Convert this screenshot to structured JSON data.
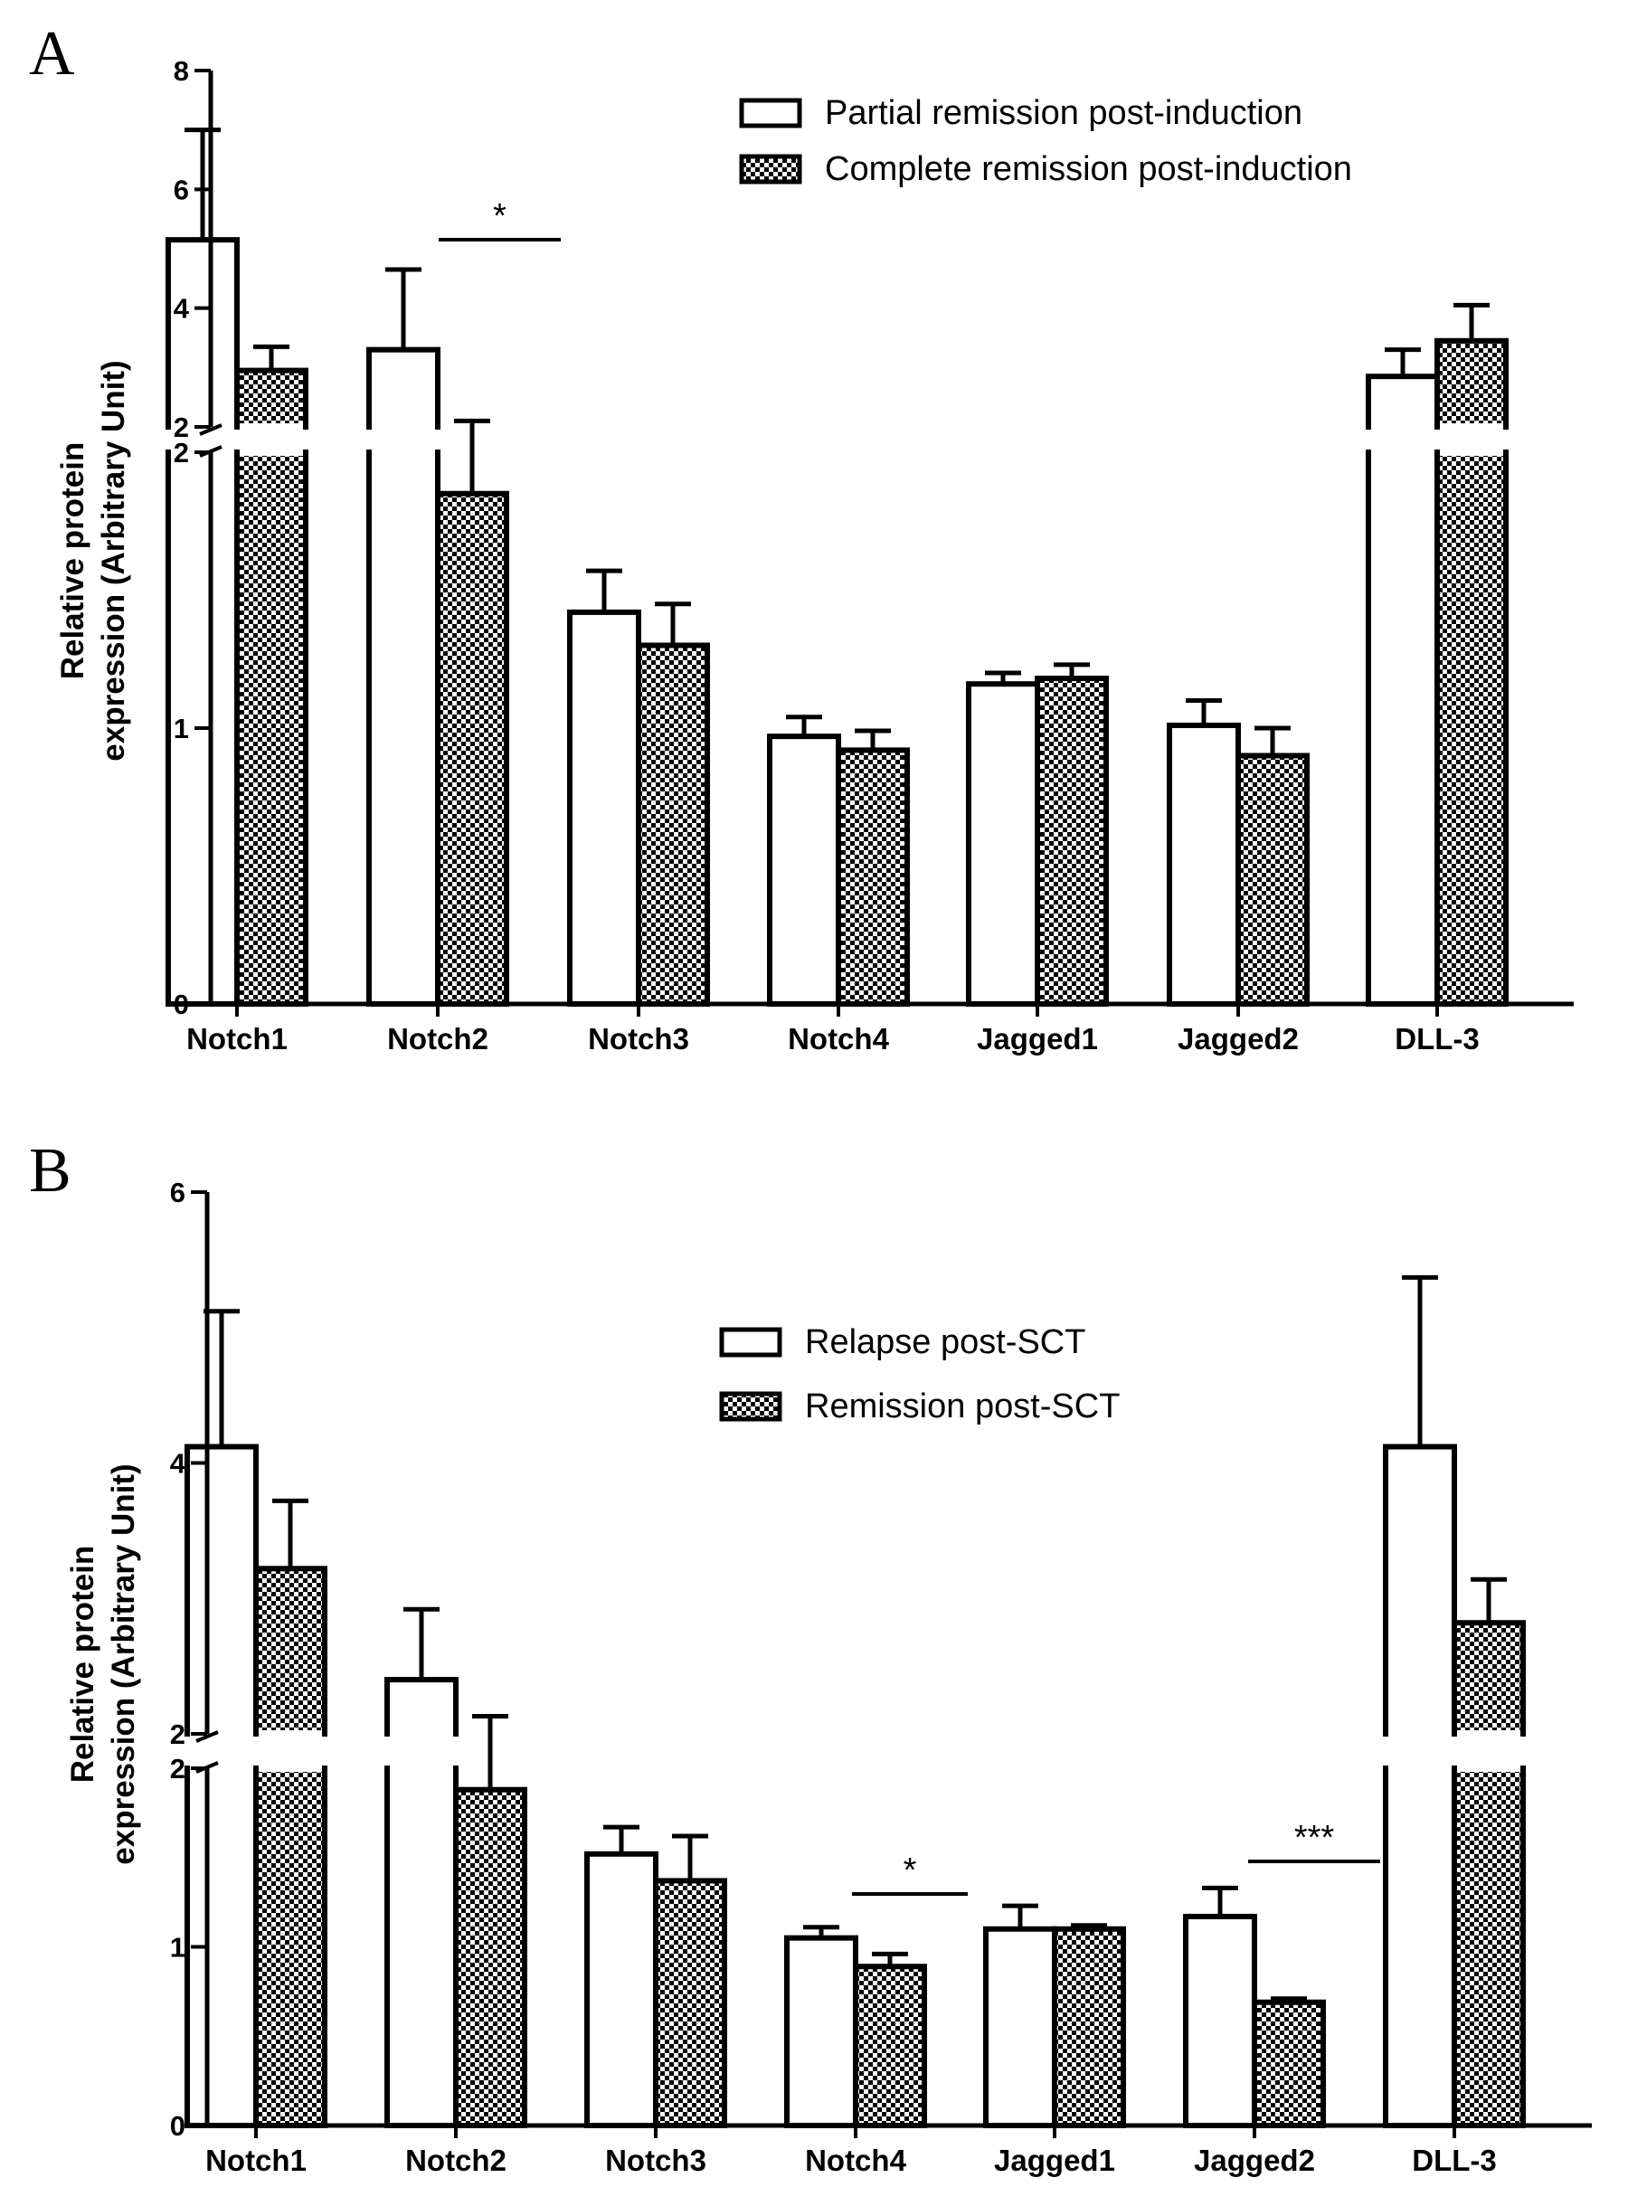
{
  "colors": {
    "ink": "#000000",
    "bar_open": "#ffffff",
    "checker": "#000000",
    "background": "#ffffff"
  },
  "chart_data": [
    {
      "panel": "A",
      "type": "bar",
      "xlabel": "",
      "ylabel_lines": [
        "Relative protein",
        "expression (Arbitrary Unit)"
      ],
      "y_axis_break": {
        "lower_range": [
          0,
          2
        ],
        "upper_range": [
          2,
          8
        ]
      },
      "yticks_lower": [
        {
          "value": 0,
          "label": "0"
        },
        {
          "value": 1,
          "label": "1"
        },
        {
          "value": 2,
          "label": "2"
        }
      ],
      "yticks_upper": [
        {
          "value": 2,
          "label": "2"
        },
        {
          "value": 4,
          "label": "4"
        },
        {
          "value": 6,
          "label": "6"
        },
        {
          "value": 8,
          "label": "8"
        }
      ],
      "categories": [
        "Notch1",
        "Notch2",
        "Notch3",
        "Notch4",
        "Jagged1",
        "Jagged2",
        "DLL-3"
      ],
      "series": [
        {
          "name": "Partial remission post-induction",
          "pattern": "open",
          "values": [
            5.15,
            3.3,
            1.42,
            0.97,
            1.16,
            1.01,
            2.85
          ],
          "errors": [
            1.85,
            1.35,
            0.15,
            0.07,
            0.04,
            0.09,
            0.45
          ]
        },
        {
          "name": "Complete remission post-induction",
          "pattern": "checker",
          "values": [
            2.95,
            1.85,
            1.3,
            0.92,
            1.18,
            0.9,
            3.45
          ],
          "errors": [
            0.4,
            0.25,
            0.15,
            0.07,
            0.05,
            0.1,
            0.6
          ]
        }
      ],
      "significance": [
        {
          "category": "Notch2",
          "label": "*"
        }
      ]
    },
    {
      "panel": "B",
      "type": "bar",
      "xlabel": "",
      "ylabel_lines": [
        "Relative protein",
        "expression (Arbitrary Unit)"
      ],
      "y_axis_break": {
        "lower_range": [
          0,
          2
        ],
        "upper_range": [
          2,
          6
        ]
      },
      "yticks_lower": [
        {
          "value": 0,
          "label": "0"
        },
        {
          "value": 1,
          "label": "1"
        },
        {
          "value": 2,
          "label": "2"
        }
      ],
      "yticks_upper": [
        {
          "value": 2,
          "label": "2"
        },
        {
          "value": 4,
          "label": "4"
        },
        {
          "value": 6,
          "label": "6"
        }
      ],
      "categories": [
        "Notch1",
        "Notch2",
        "Notch3",
        "Notch4",
        "Jagged1",
        "Jagged2",
        "DLL-3"
      ],
      "series": [
        {
          "name": "Relapse post-SCT",
          "pattern": "open",
          "values": [
            4.12,
            2.4,
            1.52,
            1.05,
            1.1,
            1.17,
            4.12
          ],
          "errors": [
            1.0,
            0.52,
            0.15,
            0.06,
            0.13,
            0.16,
            1.25
          ]
        },
        {
          "name": "Remission post-SCT",
          "pattern": "checker",
          "values": [
            3.22,
            1.88,
            1.37,
            0.89,
            1.1,
            0.69,
            2.82
          ],
          "errors": [
            0.5,
            0.25,
            0.25,
            0.07,
            0.02,
            0.02,
            0.32
          ]
        }
      ],
      "significance": [
        {
          "category": "Notch4",
          "label": "*"
        },
        {
          "category": "Jagged2",
          "label": "***"
        }
      ]
    }
  ]
}
